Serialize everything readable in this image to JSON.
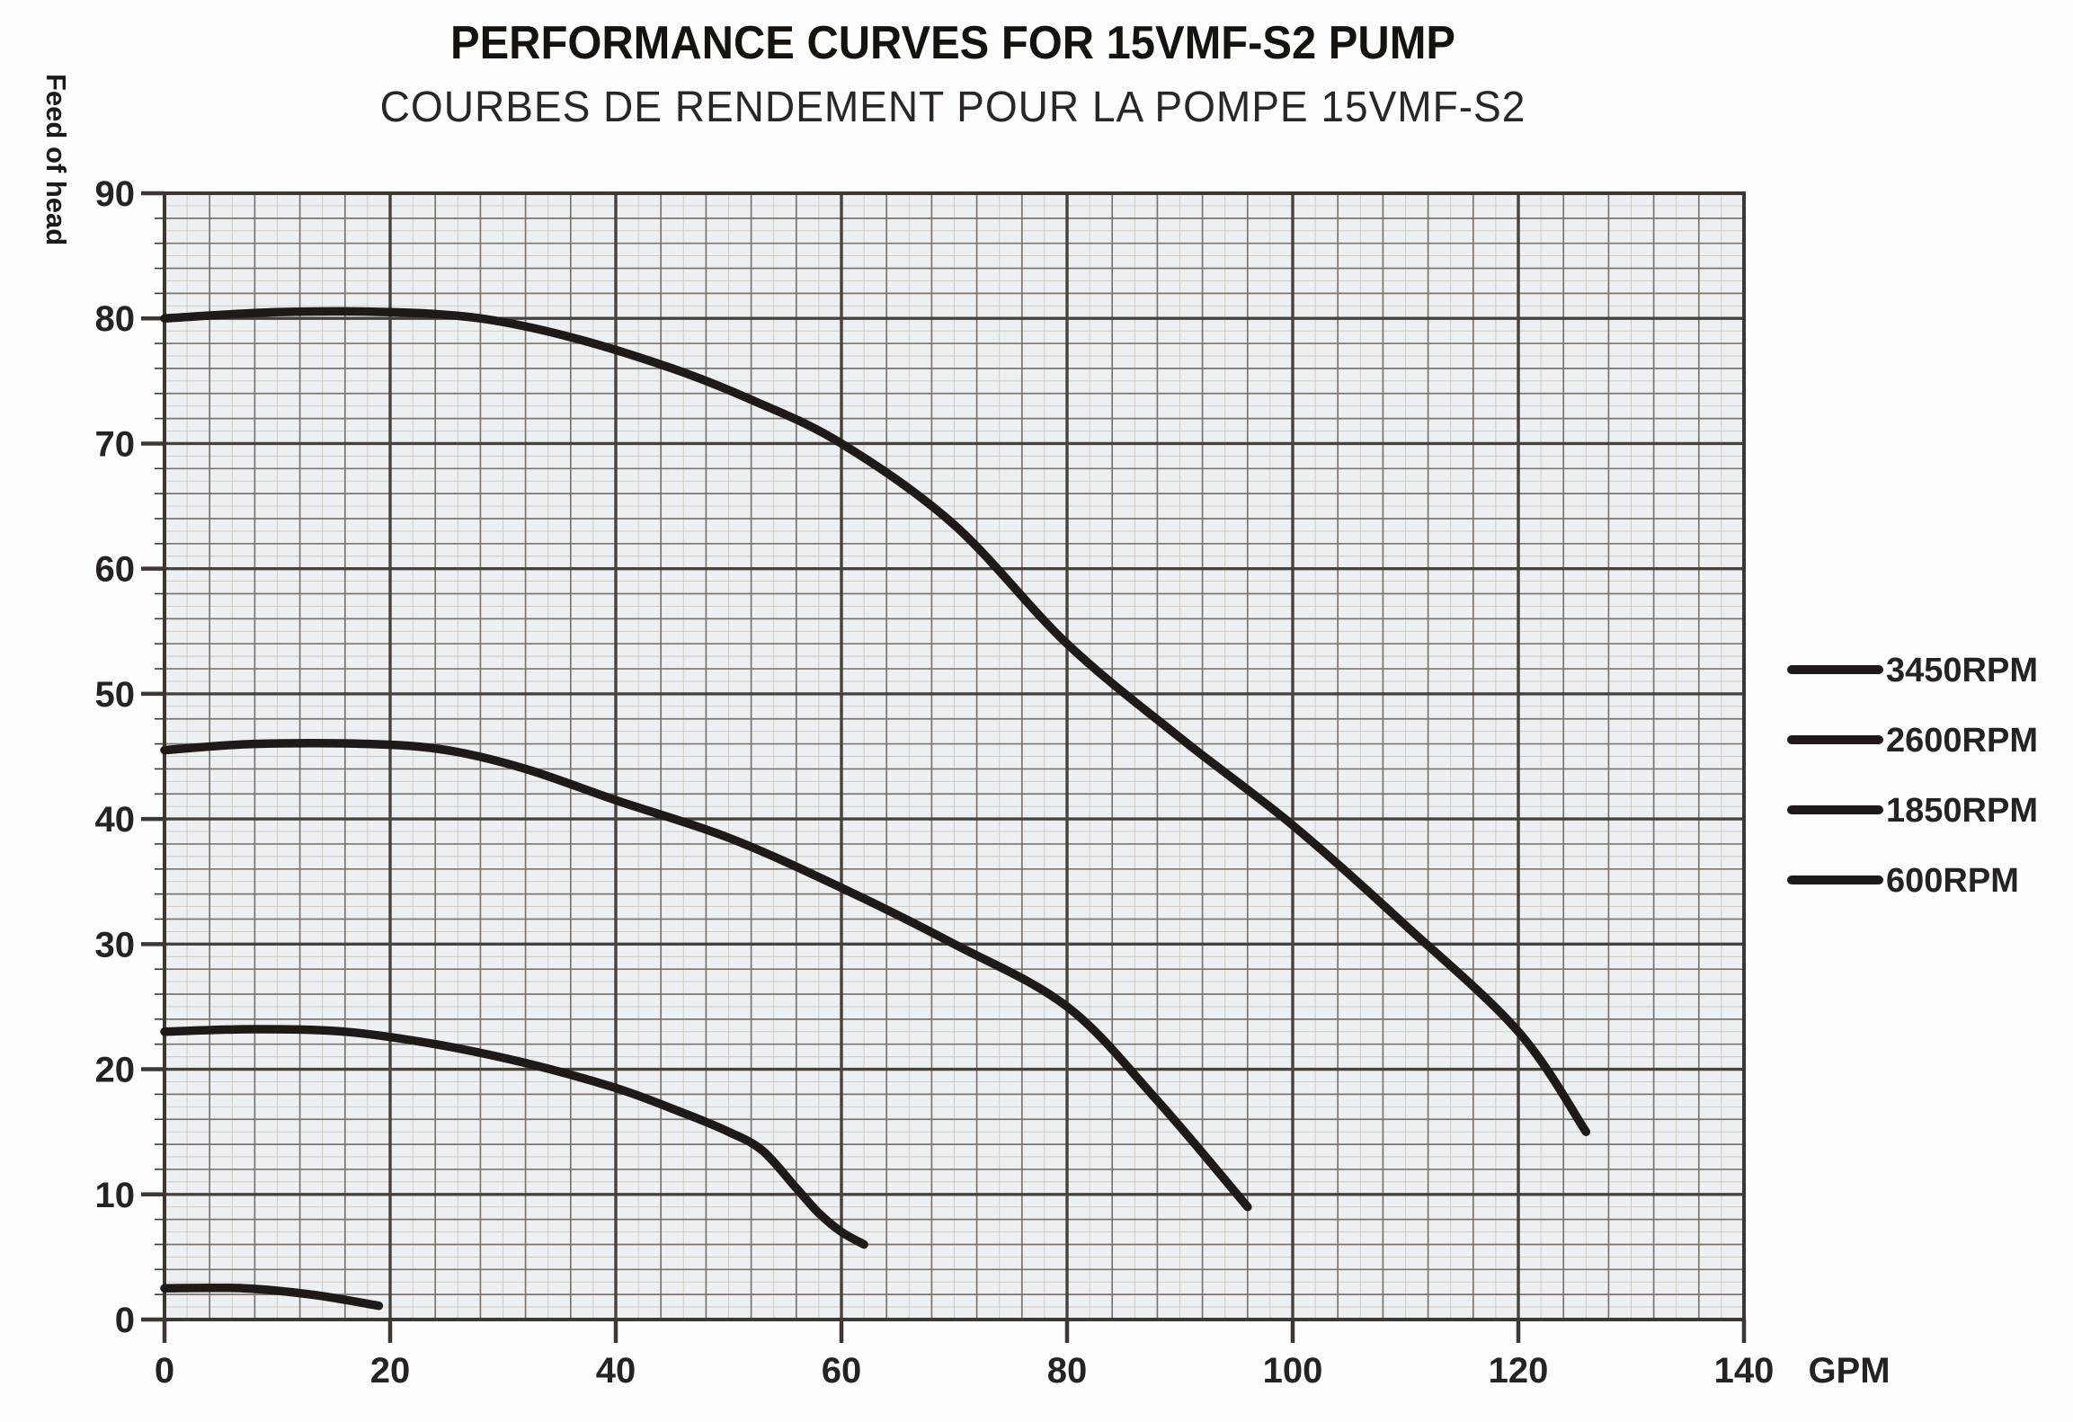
{
  "page": {
    "heading": "PERFORMANCE CURVES FOR 15VMF-S2 PUMP",
    "subheading": "COURBES DE RENDEMENT POUR LA POMPE 15VMF-S2"
  },
  "chart_data": {
    "type": "line",
    "title": "PERFORMANCE CURVES FOR 15VMF-S2 PUMP",
    "subtitle": "COURBES DE RENDEMENT POUR LA POMPE 15VMF-S2",
    "xlabel": "GPM",
    "ylabel": "Feed of head",
    "xlim": [
      0,
      140
    ],
    "ylim": [
      0,
      90
    ],
    "x_major_step": 20,
    "x_minor_step": 4,
    "y_major_step": 10,
    "y_minor_step": 2,
    "x_ticks": [
      "0",
      "20",
      "40",
      "60",
      "80",
      "100",
      "120",
      "140"
    ],
    "y_ticks": [
      "90",
      "80",
      "70",
      "60",
      "50",
      "40",
      "30",
      "20",
      "10",
      "0"
    ],
    "grid": "on",
    "legend_position": "right",
    "series": [
      {
        "name": "3450RPM",
        "points": [
          [
            0,
            80
          ],
          [
            10,
            80.5
          ],
          [
            20,
            80.5
          ],
          [
            28,
            80
          ],
          [
            36,
            78.5
          ],
          [
            45,
            76
          ],
          [
            52,
            73.5
          ],
          [
            60,
            70
          ],
          [
            70,
            63.5
          ],
          [
            80,
            54
          ],
          [
            90,
            46.5
          ],
          [
            100,
            39.5
          ],
          [
            110,
            31.5
          ],
          [
            120,
            23
          ],
          [
            126,
            15
          ]
        ]
      },
      {
        "name": "2600RPM",
        "points": [
          [
            0,
            45.5
          ],
          [
            8,
            46
          ],
          [
            18,
            46
          ],
          [
            25,
            45.5
          ],
          [
            32,
            44
          ],
          [
            40,
            41.5
          ],
          [
            50,
            38.5
          ],
          [
            60,
            34.5
          ],
          [
            70,
            30
          ],
          [
            80,
            25
          ],
          [
            88,
            17.5
          ],
          [
            96,
            9
          ]
        ]
      },
      {
        "name": "1850RPM",
        "points": [
          [
            0,
            23
          ],
          [
            8,
            23.2
          ],
          [
            16,
            23
          ],
          [
            24,
            22
          ],
          [
            32,
            20.5
          ],
          [
            40,
            18.5
          ],
          [
            46,
            16.5
          ],
          [
            50,
            15
          ],
          [
            53,
            13.5
          ],
          [
            56,
            10.5
          ],
          [
            58,
            8.5
          ],
          [
            60,
            7
          ],
          [
            62,
            6
          ]
        ]
      },
      {
        "name": "600RPM",
        "points": [
          [
            0,
            2.5
          ],
          [
            7,
            2.5
          ],
          [
            13,
            2
          ],
          [
            19,
            1.1
          ]
        ]
      }
    ]
  },
  "colors": {
    "plot_bg": "#edf0f2",
    "grid_faint": "#cdc7c0",
    "grid_minor": "#7d746c",
    "grid_major": "#48423d",
    "border": "#3c3733",
    "curve": "#1f1a17",
    "text": "#262220"
  }
}
